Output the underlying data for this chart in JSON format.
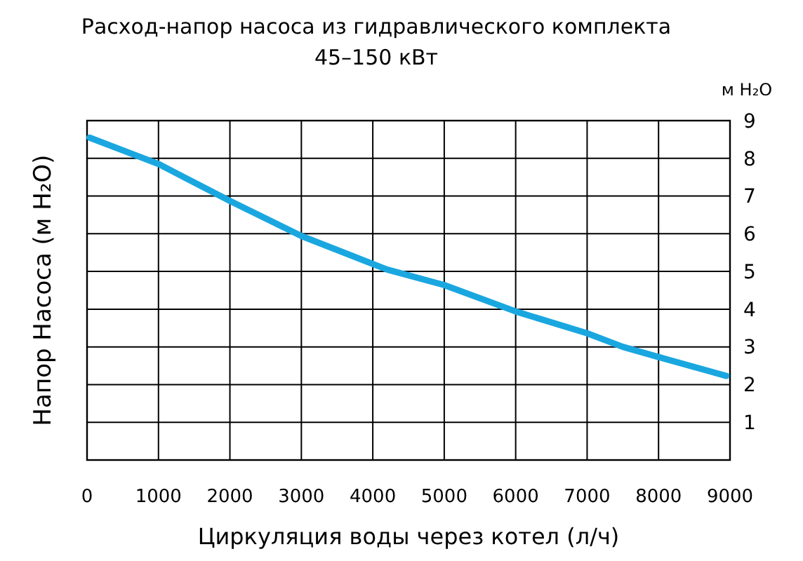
{
  "chart_data": {
    "type": "line",
    "title": "Расход-напор насоса из гидравлического комплекта",
    "subtitle": "45–150 кВт",
    "xlabel": "Циркуляция воды через котел (л/ч)",
    "ylabel": "Напор Насоса (м H₂O)",
    "annotations": [
      "м H₂O"
    ],
    "x": [
      35,
      1000,
      2000,
      3000,
      4200,
      5000,
      6000,
      7000,
      7500,
      8000,
      8950
    ],
    "series": [
      {
        "color": "#1aa7e0",
        "values": [
          8.55,
          7.85,
          6.87,
          5.94,
          5.05,
          4.64,
          3.94,
          3.36,
          3.0,
          2.73,
          2.23
        ]
      }
    ],
    "xlim": [
      0,
      9000
    ],
    "xticks": [
      0,
      1000,
      2000,
      3000,
      4000,
      5000,
      6000,
      7000,
      8000,
      9000
    ],
    "ylim": [
      0,
      9
    ],
    "yticks": [
      1,
      2,
      3,
      4,
      5,
      6,
      7,
      8,
      9
    ],
    "grid": true,
    "marker": "none",
    "line_style": "solid"
  }
}
